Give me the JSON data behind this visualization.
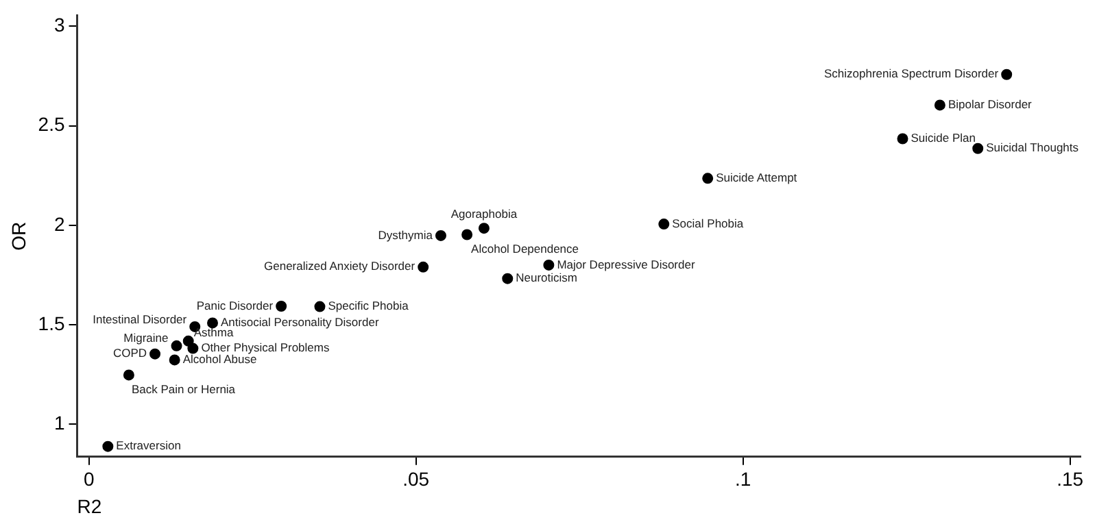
{
  "chart_data": {
    "type": "scatter",
    "xlabel": "R2",
    "ylabel": "OR",
    "marker": "circle",
    "grid": false,
    "legend": false,
    "xlim": [
      -0.0018,
      0.1516
    ],
    "ylim": [
      0.836,
      3.054
    ],
    "xticks": [
      0,
      {
        "value": 0.05,
        "label": ".05"
      },
      {
        "value": 0.1,
        "label": ".1"
      },
      {
        "value": 0.15,
        "label": ".15"
      }
    ],
    "yticks": [
      1,
      1.5,
      2,
      2.5,
      3
    ],
    "series": [
      {
        "color": "#000000",
        "x": [
          0.1403,
          0.1301,
          0.1244,
          0.1359,
          0.0946,
          0.0879,
          0.0604,
          0.0538,
          0.0578,
          0.0511,
          0.0703,
          0.064,
          0.0294,
          0.0353,
          0.0162,
          0.0189,
          0.0152,
          0.0134,
          0.0159,
          0.0101,
          0.0131,
          0.0061,
          0.0029
        ],
        "values": [
          2.758,
          2.604,
          2.435,
          2.386,
          2.236,
          2.006,
          1.985,
          1.948,
          1.953,
          1.79,
          1.8,
          1.732,
          1.593,
          1.591,
          1.49,
          1.509,
          1.418,
          1.394,
          1.381,
          1.353,
          1.323,
          1.247,
          0.888
        ]
      }
    ],
    "annotations": [
      {
        "text": "Schizophrenia Spectrum Disorder",
        "x": 0.1403,
        "y": 2.758
      },
      {
        "text": "Bipolar Disorder",
        "x": 0.1301,
        "y": 2.604
      },
      {
        "text": "Suicide Plan",
        "x": 0.1244,
        "y": 2.435
      },
      {
        "text": "Suicidal Thoughts",
        "x": 0.1359,
        "y": 2.386
      },
      {
        "text": "Suicide Attempt",
        "x": 0.0946,
        "y": 2.236
      },
      {
        "text": "Social Phobia",
        "x": 0.0879,
        "y": 2.006
      },
      {
        "text": "Agoraphobia",
        "x": 0.0604,
        "y": 1.985
      },
      {
        "text": "Dysthymia",
        "x": 0.0538,
        "y": 1.948
      },
      {
        "text": "Alcohol Dependence",
        "x": 0.0578,
        "y": 1.953
      },
      {
        "text": "Generalized Anxiety Disorder",
        "x": 0.0511,
        "y": 1.79
      },
      {
        "text": "Major Depressive Disorder",
        "x": 0.0703,
        "y": 1.8
      },
      {
        "text": "Neuroticism",
        "x": 0.064,
        "y": 1.732
      },
      {
        "text": "Panic Disorder",
        "x": 0.0294,
        "y": 1.593
      },
      {
        "text": "Specific Phobia",
        "x": 0.0353,
        "y": 1.591
      },
      {
        "text": "Intestinal Disorder",
        "x": 0.0162,
        "y": 1.49
      },
      {
        "text": "Antisocial Personality Disorder",
        "x": 0.0189,
        "y": 1.509
      },
      {
        "text": "Asthma",
        "x": 0.0152,
        "y": 1.418
      },
      {
        "text": "Migraine",
        "x": 0.0134,
        "y": 1.394
      },
      {
        "text": "Other Physical Problems",
        "x": 0.0159,
        "y": 1.381
      },
      {
        "text": "COPD",
        "x": 0.0101,
        "y": 1.353
      },
      {
        "text": "Alcohol Abuse",
        "x": 0.0131,
        "y": 1.323
      },
      {
        "text": "Back Pain or Hernia",
        "x": 0.0061,
        "y": 1.247
      },
      {
        "text": "Extraversion",
        "x": 0.0029,
        "y": 0.888
      }
    ]
  }
}
